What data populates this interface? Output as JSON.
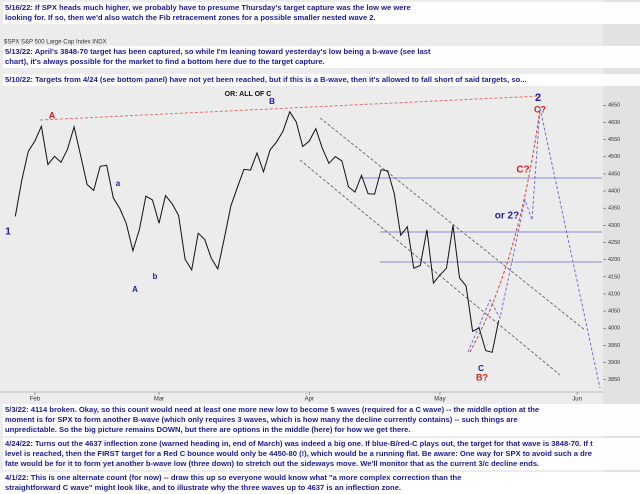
{
  "chart_data": {
    "type": "line",
    "title": "$SPX S&P 500 Large Cap Index INDX",
    "categories": [
      null,
      null,
      null,
      "Feb",
      null,
      null,
      null,
      null,
      null,
      null,
      null,
      null,
      null,
      null,
      null,
      null,
      null,
      null,
      null,
      null,
      null,
      null,
      "Mar",
      null,
      null,
      null,
      null,
      null,
      null,
      null,
      null,
      null,
      null,
      null,
      null,
      null,
      null,
      null,
      null,
      null,
      null,
      null,
      null,
      null,
      null,
      "Apr",
      null,
      null,
      null,
      null,
      null,
      null,
      null,
      null,
      null,
      null,
      null,
      null,
      null,
      null,
      null,
      null,
      null,
      null,
      null,
      "May",
      null,
      null,
      null,
      null,
      null,
      null,
      null,
      null,
      null,
      null,
      null,
      null,
      null,
      null,
      null,
      null,
      null,
      null,
      null,
      null,
      "Jun",
      null,
      null,
      null
    ],
    "series": [
      {
        "name": "$SPX",
        "color": "#111111",
        "values": [
          4326,
          4432,
          4516,
          4546,
          4589,
          4477,
          4501,
          4484,
          4522,
          4587,
          4504,
          4419,
          4402,
          4472,
          4475,
          4380,
          4349,
          4305,
          4226,
          4288,
          4385,
          4374,
          4306,
          4387,
          4363,
          4329,
          4201,
          4170,
          4277,
          4259,
          4204,
          4173,
          4262,
          4357,
          4411,
          4463,
          4461,
          4511,
          4456,
          4520,
          4543,
          4575,
          4631,
          4602,
          4530,
          4546,
          4582,
          4525,
          4481,
          4500,
          4488,
          4412,
          4397,
          4446,
          4392,
          4391,
          4462,
          4459,
          4393,
          4271,
          4296,
          4175,
          4183,
          4287,
          4132,
          4155,
          4175,
          4300,
          4147,
          4123,
          3991,
          4001,
          3935,
          3930,
          4023,
          null,
          null,
          null,
          null,
          null,
          null,
          null,
          null,
          null,
          null,
          null,
          null,
          null,
          null,
          null
        ]
      }
    ],
    "ylim": [
      3820,
      4680
    ],
    "yticks": [
      3850,
      3900,
      3950,
      4000,
      4050,
      4100,
      4150,
      4200,
      4250,
      4300,
      4350,
      4400,
      4450,
      4500,
      4550,
      4600,
      4650
    ],
    "grid": false,
    "annotations": [
      {
        "text": "OR: ALL OF C",
        "color": "#111111"
      },
      {
        "text": "A",
        "color": "#d62020"
      },
      {
        "text": "a",
        "color": "#1c1ca0"
      },
      {
        "text": "b",
        "color": "#1c1ca0"
      },
      {
        "text": "A",
        "color": "#1c1ca0"
      },
      {
        "text": "B",
        "color": "#1c1ca0"
      },
      {
        "text": "C",
        "color": "#1c1ca0"
      },
      {
        "text": "B?",
        "color": "#d62020"
      },
      {
        "text": "2",
        "color": "#1c1ca0"
      },
      {
        "text": "C?",
        "color": "#d62020"
      },
      {
        "text": "C?",
        "color": "#d62020"
      },
      {
        "text": "or 2?",
        "color": "#1c1ca0"
      },
      {
        "text": "1",
        "color": "#1c1ca0"
      }
    ]
  },
  "notes_top": [
    {
      "lines": [
        "5/16/22:  If SPX heads much higher, we probably have to presume Thursday's target capture was the low we were",
        "looking for.  If so, then we'd also watch the Fib retracement zones for a possible smaller nested wave 2."
      ]
    },
    {
      "lines": [
        "5/13/22:  April's 3848-70 target has been captured, so while I'm leaning toward yesterday's low being a b-wave (see last",
        "chart), it's always possible for the market to find a bottom here due to the target capture."
      ]
    },
    {
      "lines": [
        "5/10/22:  Targets from 4/24 (see bottom panel) have not yet been reached, but if this is a B-wave, then it's allowed to fall short of said targets, so..."
      ]
    }
  ],
  "notes_bottom": [
    {
      "lines": [
        "5/3/22:  4114 broken.  Okay, so this count would need at least one more new low to become 5 waves (required for a C wave) -- the middle option at the",
        "moment is for SPX to form another B-wave (which only requires 3 waves, which is how many the decline currently contains) -- such things are",
        "unpredictable.  So the big picture remains DOWN, but there are options in the middle (here) for how we get there."
      ]
    },
    {
      "lines": [
        "4/24/22:  Turns out the 4637 inflection zone (warned heading in, end of March) was indeed a big one.  If blue-B/red-C plays out, the target for that wave is 3848-70.  If t",
        "level is reached, then the FIRST target for a Red C bounce would only be 4450-80 (!), which would be a running flat.  Be aware:  One way for SPX to avoid such a dre",
        "fate would be for it to form yet another b-wave low (three down) to stretch out the sideways move.  We'll monitor that as the current 3/c decline ends."
      ]
    },
    {
      "lines": [
        "4/1/22:  This is one alternate count (for now) -- draw this up so everyone would know what \"a more complex correction than the",
        "straightforward C wave\" might look like, and to illustrate why the three waves up to 4637 is an inflection zone."
      ]
    }
  ]
}
